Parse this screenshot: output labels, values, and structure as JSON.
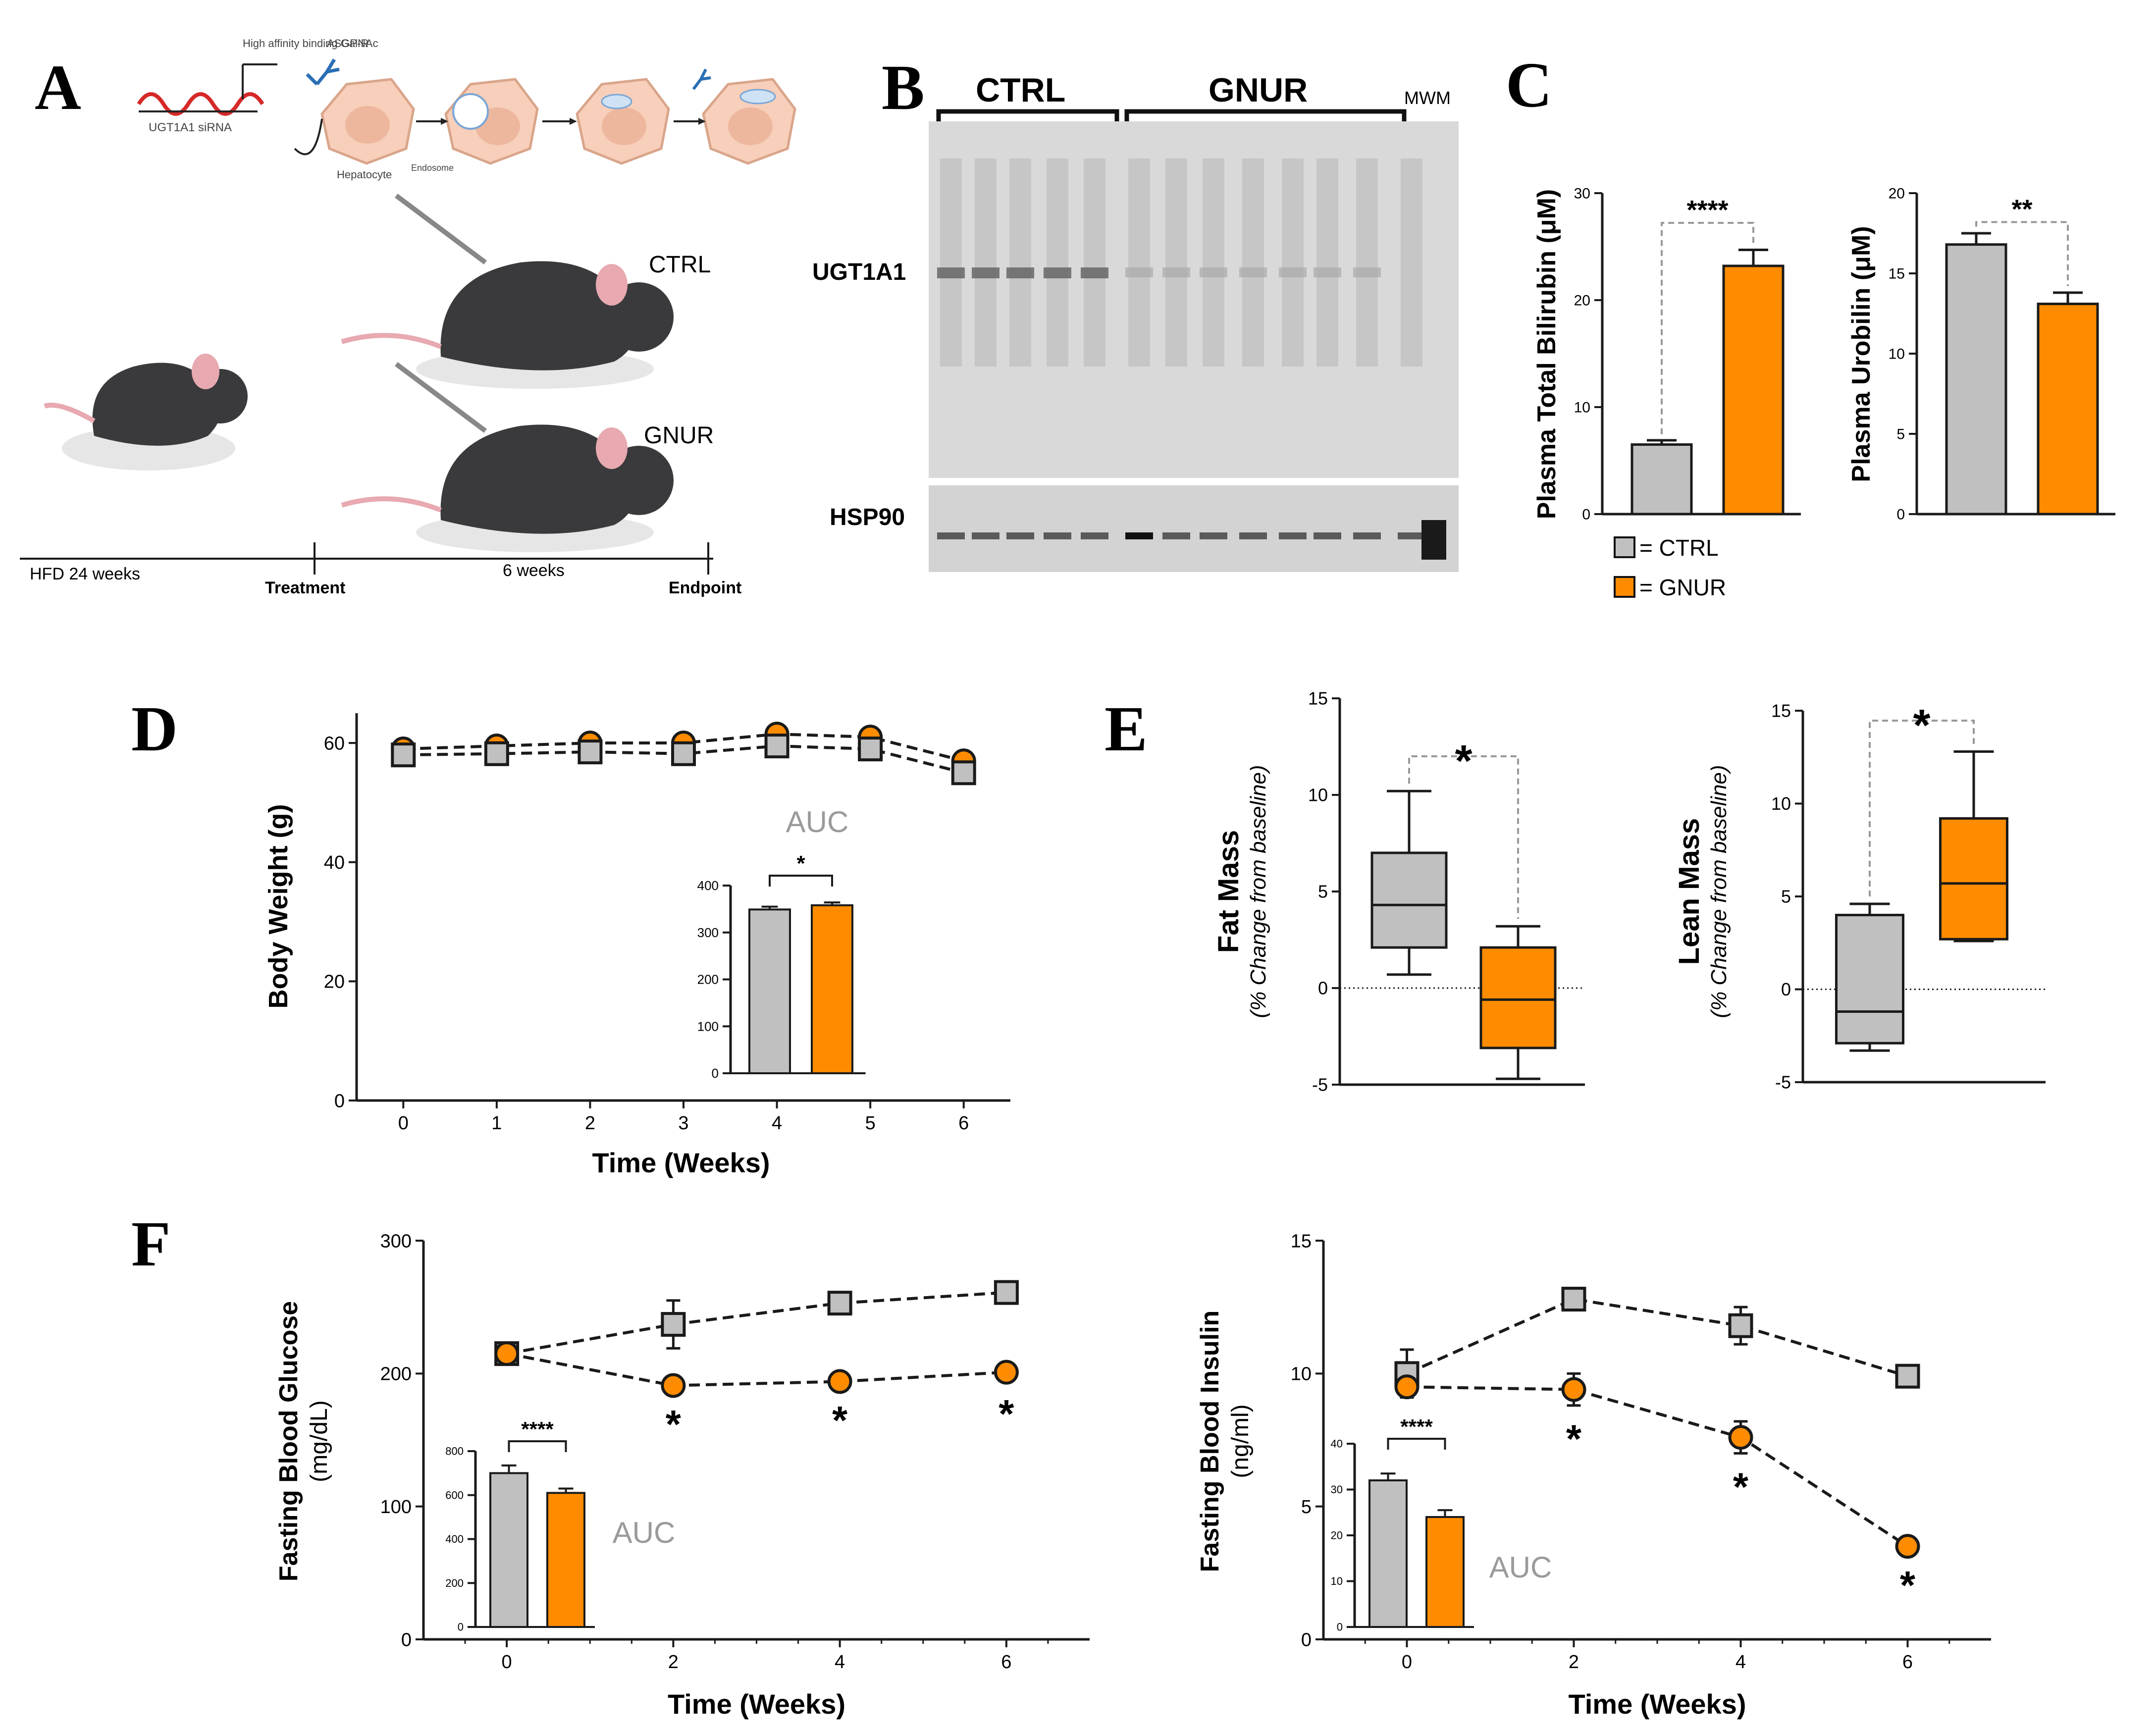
{
  "panel_letters": [
    "A",
    "B",
    "C",
    "D",
    "E",
    "F"
  ],
  "colors": {
    "ctrl": "#c0c0c0",
    "gnur": "#ff8c00",
    "axis": "#1a1a1a",
    "dash": "#999999",
    "auc": "#9a9a9a",
    "cell": "#f7cfba",
    "mouse": "#3a3a3d",
    "blot_bg": "#d9d9d9"
  },
  "panelA": {
    "cell_labels": [
      "High affinity binding GalNAc",
      "ASGP-R",
      "UGT1A1 siRNA",
      "Hepatocyte",
      "Endosome"
    ],
    "group_labels": [
      "CTRL",
      "GNUR"
    ],
    "timeline": {
      "start": "HFD 24 weeks",
      "treatment": "Treatment",
      "duration": "6 weeks",
      "end": "Endpoint"
    }
  },
  "panelB": {
    "groups": [
      "CTRL",
      "GNUR"
    ],
    "marker": "MWM",
    "bands": [
      "UGT1A1",
      "HSP90"
    ]
  },
  "chart_data": [
    {
      "id": "C1",
      "type": "bar",
      "ylabel": "Plasma Total Bilirubin (μM)",
      "ylim": [
        0,
        30
      ],
      "yticks": [
        0,
        10,
        20,
        30
      ],
      "categories": [
        "CTRL",
        "GNUR"
      ],
      "values": [
        6.5,
        23.2
      ],
      "errors": [
        0.4,
        1.5
      ],
      "significance": "****"
    },
    {
      "id": "C2",
      "type": "bar",
      "ylabel": "Plasma Urobilin (μM)",
      "ylim": [
        0,
        20
      ],
      "yticks": [
        0,
        5,
        10,
        15,
        20
      ],
      "categories": [
        "CTRL",
        "GNUR"
      ],
      "values": [
        16.8,
        13.1
      ],
      "errors": [
        0.7,
        0.7
      ],
      "significance": "**"
    },
    {
      "id": "C-legend",
      "legend": [
        "= CTRL",
        "= GNUR"
      ]
    },
    {
      "id": "D",
      "type": "line",
      "xlabel": "Time (Weeks)",
      "ylabel": "Body Weight (g)",
      "xlim": [
        -0.5,
        6.5
      ],
      "ylim": [
        0,
        65
      ],
      "xticks": [
        0,
        1,
        2,
        3,
        4,
        5,
        6
      ],
      "yticks": [
        0,
        20,
        40,
        60
      ],
      "x": [
        0,
        1,
        2,
        3,
        4,
        5,
        6
      ],
      "series": [
        {
          "name": "GNUR",
          "values": [
            59,
            59.5,
            60,
            60,
            61.5,
            61,
            57
          ]
        },
        {
          "name": "CTRL",
          "values": [
            58,
            58.2,
            58.5,
            58.2,
            59.5,
            59,
            55
          ]
        }
      ],
      "inset": {
        "title": "AUC",
        "type": "bar",
        "ylim": [
          0,
          400
        ],
        "yticks": [
          0,
          100,
          200,
          300,
          400
        ],
        "values": [
          349,
          358
        ],
        "errors": [
          6,
          6
        ],
        "significance": "*"
      }
    },
    {
      "id": "E1",
      "type": "box",
      "ylabel": "Fat Mass",
      "ylabel2": "(% Change from baseline)",
      "ylim": [
        -5,
        15
      ],
      "yticks": [
        -5,
        0,
        5,
        10,
        15
      ],
      "boxes": [
        {
          "name": "CTRL",
          "min": 0.7,
          "q1": 2.1,
          "median": 4.3,
          "q3": 7.0,
          "max": 10.2
        },
        {
          "name": "GNUR",
          "min": -4.7,
          "q1": -3.1,
          "median": -0.6,
          "q3": 2.1,
          "max": 3.2
        }
      ],
      "significance": "*"
    },
    {
      "id": "E2",
      "type": "box",
      "ylabel": "Lean Mass",
      "ylabel2": "(% Change from baseline)",
      "ylim": [
        -5,
        15
      ],
      "yticks": [
        -5,
        0,
        5,
        10,
        15
      ],
      "boxes": [
        {
          "name": "CTRL",
          "min": -3.3,
          "q1": -2.9,
          "median": -1.2,
          "q3": 4.0,
          "max": 4.6
        },
        {
          "name": "GNUR",
          "min": 2.6,
          "q1": 2.7,
          "median": 5.7,
          "q3": 9.2,
          "max": 12.8
        }
      ],
      "significance": "*"
    },
    {
      "id": "F1",
      "type": "line",
      "xlabel": "Time (Weeks)",
      "ylabel": "Fasting Blood Glucose",
      "ylabel2": "(mg/dL)",
      "xlim": [
        -1,
        7
      ],
      "ylim": [
        0,
        300
      ],
      "xticks": [
        0,
        2,
        4,
        6
      ],
      "yticks": [
        0,
        100,
        200,
        300
      ],
      "x": [
        0,
        2,
        4,
        6
      ],
      "series": [
        {
          "name": "CTRL",
          "values": [
            215,
            237,
            253,
            261
          ],
          "errors": [
            4,
            18,
            6,
            6
          ]
        },
        {
          "name": "GNUR",
          "values": [
            215,
            191,
            194,
            201
          ],
          "errors": [
            4,
            4,
            4,
            6
          ]
        }
      ],
      "star_points": [
        2,
        4,
        6
      ],
      "star": "*",
      "inset": {
        "title": "AUC",
        "type": "bar",
        "ylim": [
          0,
          800
        ],
        "yticks": [
          0,
          200,
          400,
          600,
          800
        ],
        "values": [
          700,
          610
        ],
        "errors": [
          35,
          20
        ],
        "significance": "****"
      }
    },
    {
      "id": "F2",
      "type": "line",
      "xlabel": "Time (Weeks)",
      "ylabel": "Fasting Blood Insulin",
      "ylabel2": "(ng/ml)",
      "xlim": [
        -1,
        7
      ],
      "ylim": [
        0,
        15
      ],
      "xticks": [
        0,
        2,
        4,
        6
      ],
      "yticks": [
        0,
        5,
        10,
        15
      ],
      "x": [
        0,
        2,
        4,
        6
      ],
      "series": [
        {
          "name": "CTRL",
          "values": [
            10,
            12.8,
            11.8,
            9.9
          ],
          "errors": [
            0.9,
            0.2,
            0.7,
            0.2
          ]
        },
        {
          "name": "GNUR",
          "values": [
            9.5,
            9.4,
            7.6,
            3.5
          ],
          "errors": [
            0.3,
            0.6,
            0.6,
            0.2
          ]
        }
      ],
      "star_points": [
        2,
        4,
        6
      ],
      "star": "*",
      "inset": {
        "title": "AUC",
        "type": "bar",
        "ylim": [
          0,
          40
        ],
        "yticks": [
          0,
          10,
          20,
          30,
          40
        ],
        "values": [
          32,
          24
        ],
        "errors": [
          1.5,
          1.5
        ],
        "significance": "****"
      }
    }
  ]
}
